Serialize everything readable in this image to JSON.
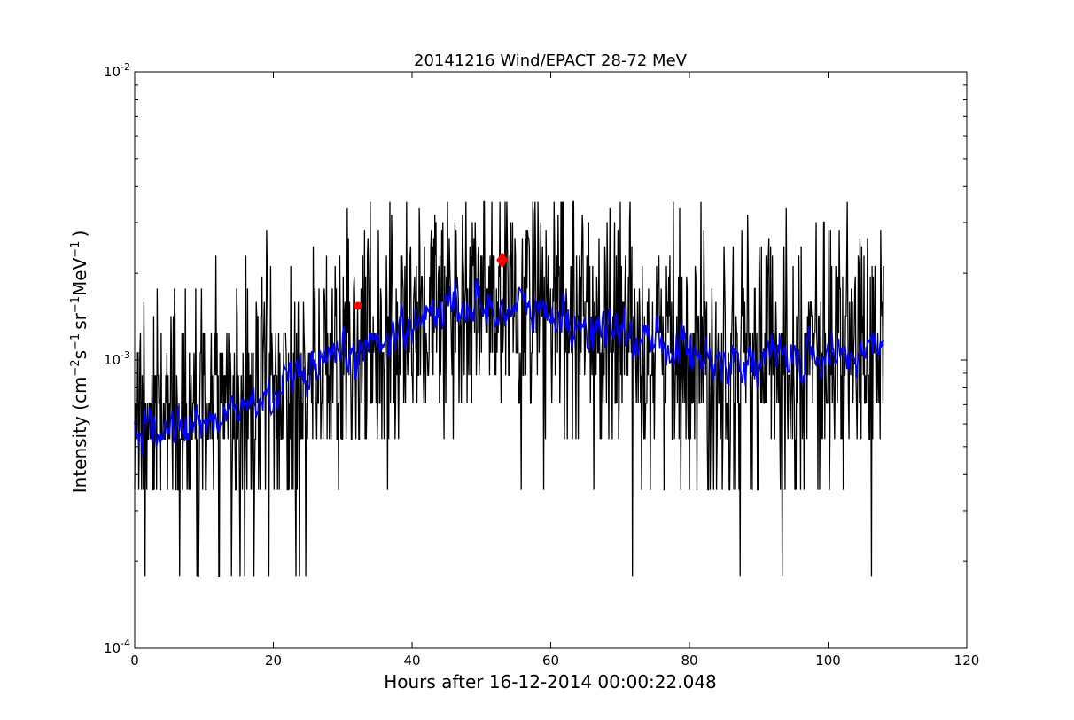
{
  "chart_data": {
    "type": "line",
    "title": "20141216 Wind/EPACT 28-72 MeV",
    "xlabel": "Hours after 16-12-2014 00:00:22.048",
    "ylabel_parts": {
      "main": "Intensity (cm",
      "exp1": "−2",
      "s": "s",
      "exp2": "−1",
      "sr": "sr",
      "exp3": "−1",
      "mev": "MeV",
      "exp4": "−1",
      "close": ")"
    },
    "xlim": [
      0,
      120
    ],
    "ylim": [
      0.0001,
      0.01
    ],
    "yscale": "log",
    "x_ticks": [
      {
        "value": 0,
        "label": "0"
      },
      {
        "value": 20,
        "label": "20"
      },
      {
        "value": 40,
        "label": "40"
      },
      {
        "value": 60,
        "label": "60"
      },
      {
        "value": 80,
        "label": "80"
      },
      {
        "value": 100,
        "label": "100"
      },
      {
        "value": 120,
        "label": "120"
      }
    ],
    "y_ticks": [
      {
        "value": 0.0001,
        "base": "10",
        "exp": "-4"
      },
      {
        "value": 0.001,
        "base": "10",
        "exp": "-3"
      },
      {
        "value": 0.01,
        "base": "10",
        "exp": "-2"
      }
    ],
    "grid": false,
    "series": [
      {
        "role": "raw",
        "color": "#000000",
        "x_start": 0,
        "x_end": 108,
        "levels": [
          0.000177,
          0.000354,
          0.000531,
          0.000708,
          0.000885,
          0.00106,
          0.00124,
          0.00142,
          0.00159,
          0.00177,
          0.00195,
          0.00212,
          0.0023,
          0.00248,
          0.00265,
          0.00283,
          0.00301,
          0.00319,
          0.00336,
          0.00354
        ],
        "trend": [
          {
            "x": 0,
            "y": 0.00055
          },
          {
            "x": 10,
            "y": 0.0006
          },
          {
            "x": 20,
            "y": 0.00075
          },
          {
            "x": 30,
            "y": 0.001
          },
          {
            "x": 40,
            "y": 0.00135
          },
          {
            "x": 45,
            "y": 0.00155
          },
          {
            "x": 52,
            "y": 0.0015
          },
          {
            "x": 57,
            "y": 0.0015
          },
          {
            "x": 65,
            "y": 0.0013
          },
          {
            "x": 75,
            "y": 0.00115
          },
          {
            "x": 85,
            "y": 0.001
          },
          {
            "x": 95,
            "y": 0.001
          },
          {
            "x": 105,
            "y": 0.00105
          },
          {
            "x": 108,
            "y": 0.0012
          }
        ]
      },
      {
        "role": "smoothed",
        "color": "#0000ff",
        "trend": [
          {
            "x": 0,
            "y": 0.00055
          },
          {
            "x": 10,
            "y": 0.0006
          },
          {
            "x": 20,
            "y": 0.00075
          },
          {
            "x": 30,
            "y": 0.001
          },
          {
            "x": 40,
            "y": 0.00135
          },
          {
            "x": 45,
            "y": 0.00155
          },
          {
            "x": 52,
            "y": 0.0015
          },
          {
            "x": 57,
            "y": 0.0015
          },
          {
            "x": 65,
            "y": 0.0013
          },
          {
            "x": 75,
            "y": 0.00115
          },
          {
            "x": 85,
            "y": 0.001
          },
          {
            "x": 95,
            "y": 0.001
          },
          {
            "x": 105,
            "y": 0.00105
          },
          {
            "x": 108,
            "y": 0.0012
          }
        ]
      }
    ],
    "markers": [
      {
        "shape": "circle",
        "color": "#ff0000",
        "x": 32.2,
        "y": 0.00154
      },
      {
        "shape": "diamond",
        "color": "#ff0000",
        "x": 53.0,
        "y": 0.00222
      }
    ]
  }
}
